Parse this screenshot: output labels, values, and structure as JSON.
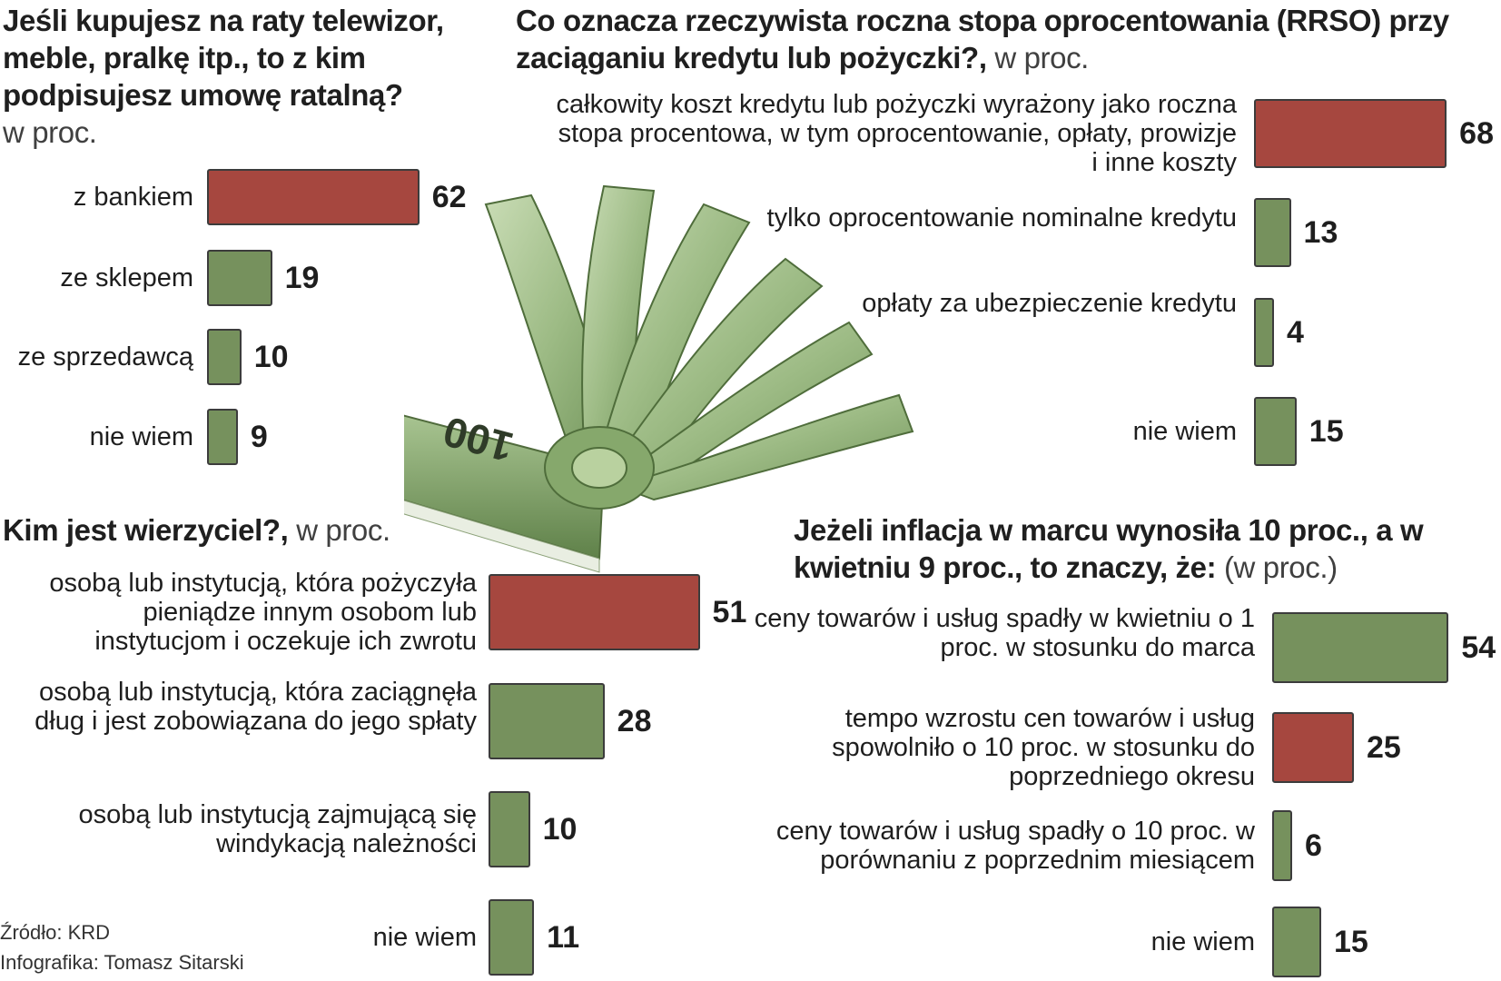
{
  "palette": {
    "highlight": "#a6473f",
    "regular": "#76915d",
    "border": "#3c3c3c"
  },
  "illustration": {
    "icon": "money-banknote-fan-icon",
    "note_value": "100"
  },
  "chart_data": [
    {
      "id": "raty",
      "type": "bar",
      "title": "Jeśli kupujesz na raty telewizor, meble, pralkę itp., to z kim podpisujesz umowę ratalną?",
      "unit": "w proc.",
      "categories": [
        "z bankiem",
        "ze sklepem",
        "ze sprzedawcą",
        "nie wiem"
      ],
      "values": [
        62,
        19,
        10,
        9
      ],
      "highlight": [
        true,
        false,
        false,
        false
      ]
    },
    {
      "id": "rrso",
      "type": "bar",
      "title": "Co oznacza rzeczywista roczna stopa oprocentowania (RRSO) przy zaciąganiu kredytu lub pożyczki?,",
      "unit": "w proc.",
      "categories": [
        "całkowity koszt kredytu lub pożyczki wyrażony jako roczna stopa procentowa, w tym oprocentowanie, opłaty, prowizje i inne koszty",
        "tylko oprocentowanie nominalne kredytu",
        "opłaty za ubezpieczenie kredytu",
        "nie wiem"
      ],
      "values": [
        68,
        13,
        4,
        15
      ],
      "highlight": [
        true,
        false,
        false,
        false
      ]
    },
    {
      "id": "wierzyciel",
      "type": "bar",
      "title": "Kim jest wierzyciel?,",
      "unit": "w proc.",
      "categories": [
        "osobą lub instytucją, która pożyczyła pieniądze innym osobom lub instytucjom i oczekuje ich zwrotu",
        "osobą lub instytucją, która zaciągnęła dług i jest zobowiązana do jego spłaty",
        "osobą lub instytucją zajmującą się windykacją należności",
        "nie wiem"
      ],
      "values": [
        51,
        28,
        10,
        11
      ],
      "highlight": [
        true,
        false,
        false,
        false
      ]
    },
    {
      "id": "inflacja",
      "type": "bar",
      "title": "Jeżeli inflacja w marcu wynosiła 10 proc., a w kwietniu 9 proc., to znaczy, że:",
      "unit": "(w proc.)",
      "categories": [
        "ceny towarów i usług spadły w kwietniu o 1 proc. w stosunku do marca",
        "tempo wzrostu cen towarów i usług spowolniło o 10 proc. w stosunku do poprzedniego okresu",
        "ceny towarów i usług spadły o 10 proc. w porównaniu z poprzednim miesiącem",
        "nie wiem"
      ],
      "values": [
        54,
        25,
        6,
        15
      ],
      "highlight": [
        false,
        true,
        false,
        false
      ]
    }
  ],
  "footer": {
    "source": "Źródło: KRD",
    "credit": "Infografika: Tomasz Sitarski"
  }
}
